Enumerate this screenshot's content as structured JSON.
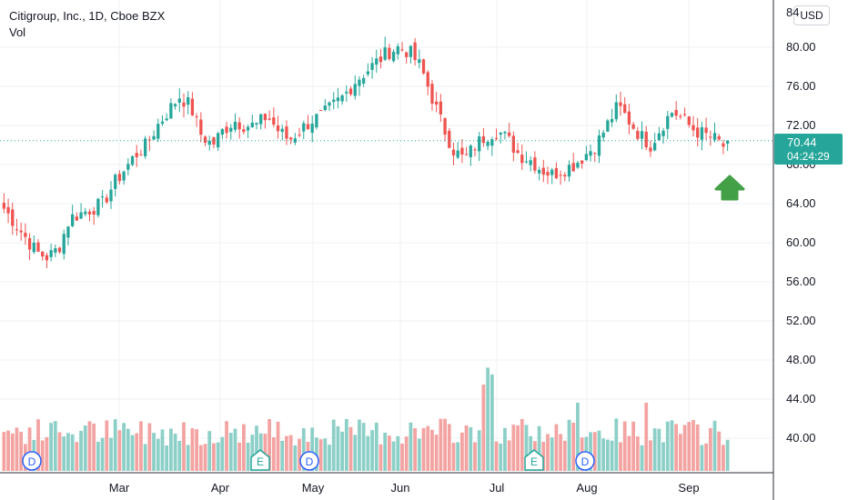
{
  "header": {
    "title": "Citigroup, Inc., 1D, Cboe BZX",
    "indicator": "Vol",
    "currency_button": "USD"
  },
  "price_badge": {
    "price": "70.44",
    "countdown": "04:24:29",
    "color": "#26a69a"
  },
  "colors": {
    "up": "#26a69a",
    "down": "#ef5350",
    "vol_up": "#8ccfc7",
    "vol_down": "#f3a3a1",
    "grid": "#eef0f3",
    "arrow": "#43a047",
    "event_dividend": "#2962ff",
    "event_earnings": "#26a69a"
  },
  "chart_data": {
    "type": "candlestick",
    "title": "Citigroup, Inc., 1D, Cboe BZX",
    "price_axis": {
      "ticks": [
        "40.00",
        "44.00",
        "48.00",
        "52.00",
        "56.00",
        "60.00",
        "64.00",
        "68.00",
        "72.00",
        "76.00",
        "80.00"
      ],
      "top_partial": "84",
      "range": [
        36.5,
        85
      ]
    },
    "time_axis": {
      "labels": [
        "Mar",
        "Apr",
        "May",
        "Jun",
        "Jul",
        "Aug",
        "Sep"
      ]
    },
    "last_price": 70.44,
    "ohlc_waypoints_close": [
      63.5,
      62.0,
      60.5,
      59.0,
      58.5,
      59.5,
      62.5,
      63.0,
      63.5,
      64.0,
      66.0,
      67.5,
      69.0,
      70.0,
      72.0,
      73.5,
      75.0,
      74.0,
      71.0,
      70.0,
      71.5,
      72.5,
      72.0,
      72.0,
      73.0,
      71.5,
      70.5,
      71.5,
      72.5,
      73.0,
      74.0,
      75.0,
      76.5,
      77.5,
      78.5,
      79.5,
      80.0,
      79.5,
      78.0,
      75.0,
      72.0,
      69.5,
      68.5,
      70.0,
      71.0,
      71.5,
      70.5,
      69.0,
      68.5,
      67.5,
      67.0,
      67.5,
      68.0,
      69.0,
      70.0,
      72.0,
      74.0,
      72.5,
      71.0,
      70.0,
      72.0,
      73.5,
      72.5,
      71.5,
      71.0,
      70.5,
      69.5
    ],
    "volume_level": 0.35,
    "events": [
      "D",
      "E",
      "D",
      "E",
      "D"
    ]
  }
}
